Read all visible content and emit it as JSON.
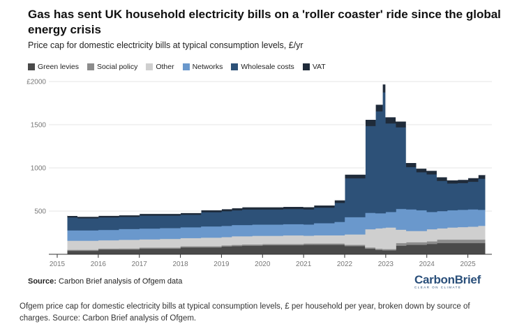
{
  "title": "Gas has sent UK household electricity bills on a 'roller coaster' ride since the global energy crisis",
  "subtitle": "Price cap for domestic electricity bills at typical consumption levels, £/yr",
  "source_label": "Source:",
  "source_text": "Carbon Brief analysis of Ofgem data",
  "logo": {
    "word": "CarbonBrief",
    "tagline": "CLEAR ON CLIMATE"
  },
  "caption": "Ofgem price cap for domestic electricity bills at typical consumption levels, £ per household per year, broken down by source of charges. Source: Carbon Brief analysis of Ofgem.",
  "legend": [
    {
      "name": "Green levies",
      "color": "#4a4a4a"
    },
    {
      "name": "Social policy",
      "color": "#8c8c8c"
    },
    {
      "name": "Other",
      "color": "#cfcfcf"
    },
    {
      "name": "Networks",
      "color": "#6a98cc"
    },
    {
      "name": "Wholesale costs",
      "color": "#2d5178"
    },
    {
      "name": "VAT",
      "color": "#1f2b3a"
    }
  ],
  "chart_data": {
    "type": "area",
    "stacked": true,
    "step": true,
    "ylim": [
      0,
      2000
    ],
    "yticks": [
      0,
      500,
      1000,
      1500,
      2000
    ],
    "ytick_labels": [
      "",
      "500",
      "1000",
      "1500",
      "£2000"
    ],
    "xlim": [
      2015.0,
      2025.5
    ],
    "xticks": [
      2015,
      2016,
      2017,
      2018,
      2019,
      2020,
      2021,
      2022,
      2023,
      2024,
      2025
    ],
    "grid": true,
    "x": [
      2015.25,
      2015.5,
      2016.0,
      2016.5,
      2017.0,
      2017.5,
      2018.0,
      2018.5,
      2019.0,
      2019.25,
      2019.5,
      2019.75,
      2020.0,
      2020.5,
      2021.0,
      2021.25,
      2021.75,
      2022.0,
      2022.5,
      2022.75,
      2022.92,
      2023.0,
      2023.25,
      2023.5,
      2023.75,
      2024.0,
      2024.25,
      2024.5,
      2024.75,
      2025.0,
      2025.25
    ],
    "x_end": 2025.42,
    "series": [
      {
        "name": "Green levies",
        "values": [
          40,
          40,
          55,
          55,
          65,
          65,
          80,
          80,
          90,
          95,
          100,
          100,
          105,
          105,
          110,
          110,
          110,
          95,
          65,
          50,
          45,
          45,
          100,
          110,
          110,
          120,
          130,
          130,
          130,
          130,
          130
        ]
      },
      {
        "name": "Social policy",
        "values": [
          12,
          12,
          12,
          13,
          13,
          13,
          13,
          13,
          14,
          14,
          14,
          14,
          14,
          14,
          15,
          15,
          15,
          15,
          15,
          15,
          15,
          15,
          30,
          30,
          30,
          30,
          40,
          40,
          40,
          40,
          40
        ]
      },
      {
        "name": "Other",
        "values": [
          105,
          105,
          95,
          100,
          95,
          100,
          95,
          100,
          95,
          100,
          95,
          100,
          95,
          100,
          90,
          95,
          95,
          120,
          210,
          235,
          245,
          250,
          155,
          130,
          130,
          140,
          130,
          140,
          145,
          150,
          160
        ]
      },
      {
        "name": "Networks",
        "values": [
          120,
          120,
          120,
          125,
          125,
          125,
          125,
          130,
          130,
          130,
          130,
          130,
          130,
          130,
          130,
          140,
          155,
          200,
          190,
          175,
          170,
          180,
          240,
          250,
          240,
          200,
          200,
          200,
          200,
          200,
          185
        ]
      },
      {
        "name": "Wholesale costs",
        "values": [
          150,
          140,
          145,
          140,
          150,
          145,
          145,
          165,
          170,
          170,
          180,
          175,
          175,
          175,
          175,
          180,
          220,
          450,
          1005,
          1180,
          1400,
          1025,
          945,
          490,
          440,
          435,
          350,
          310,
          310,
          320,
          360
        ]
      },
      {
        "name": "VAT",
        "values": [
          21,
          20,
          22,
          22,
          23,
          23,
          23,
          25,
          26,
          27,
          28,
          28,
          28,
          28,
          28,
          29,
          33,
          45,
          75,
          80,
          95,
          75,
          70,
          50,
          45,
          45,
          45,
          40,
          40,
          45,
          45
        ]
      }
    ]
  }
}
